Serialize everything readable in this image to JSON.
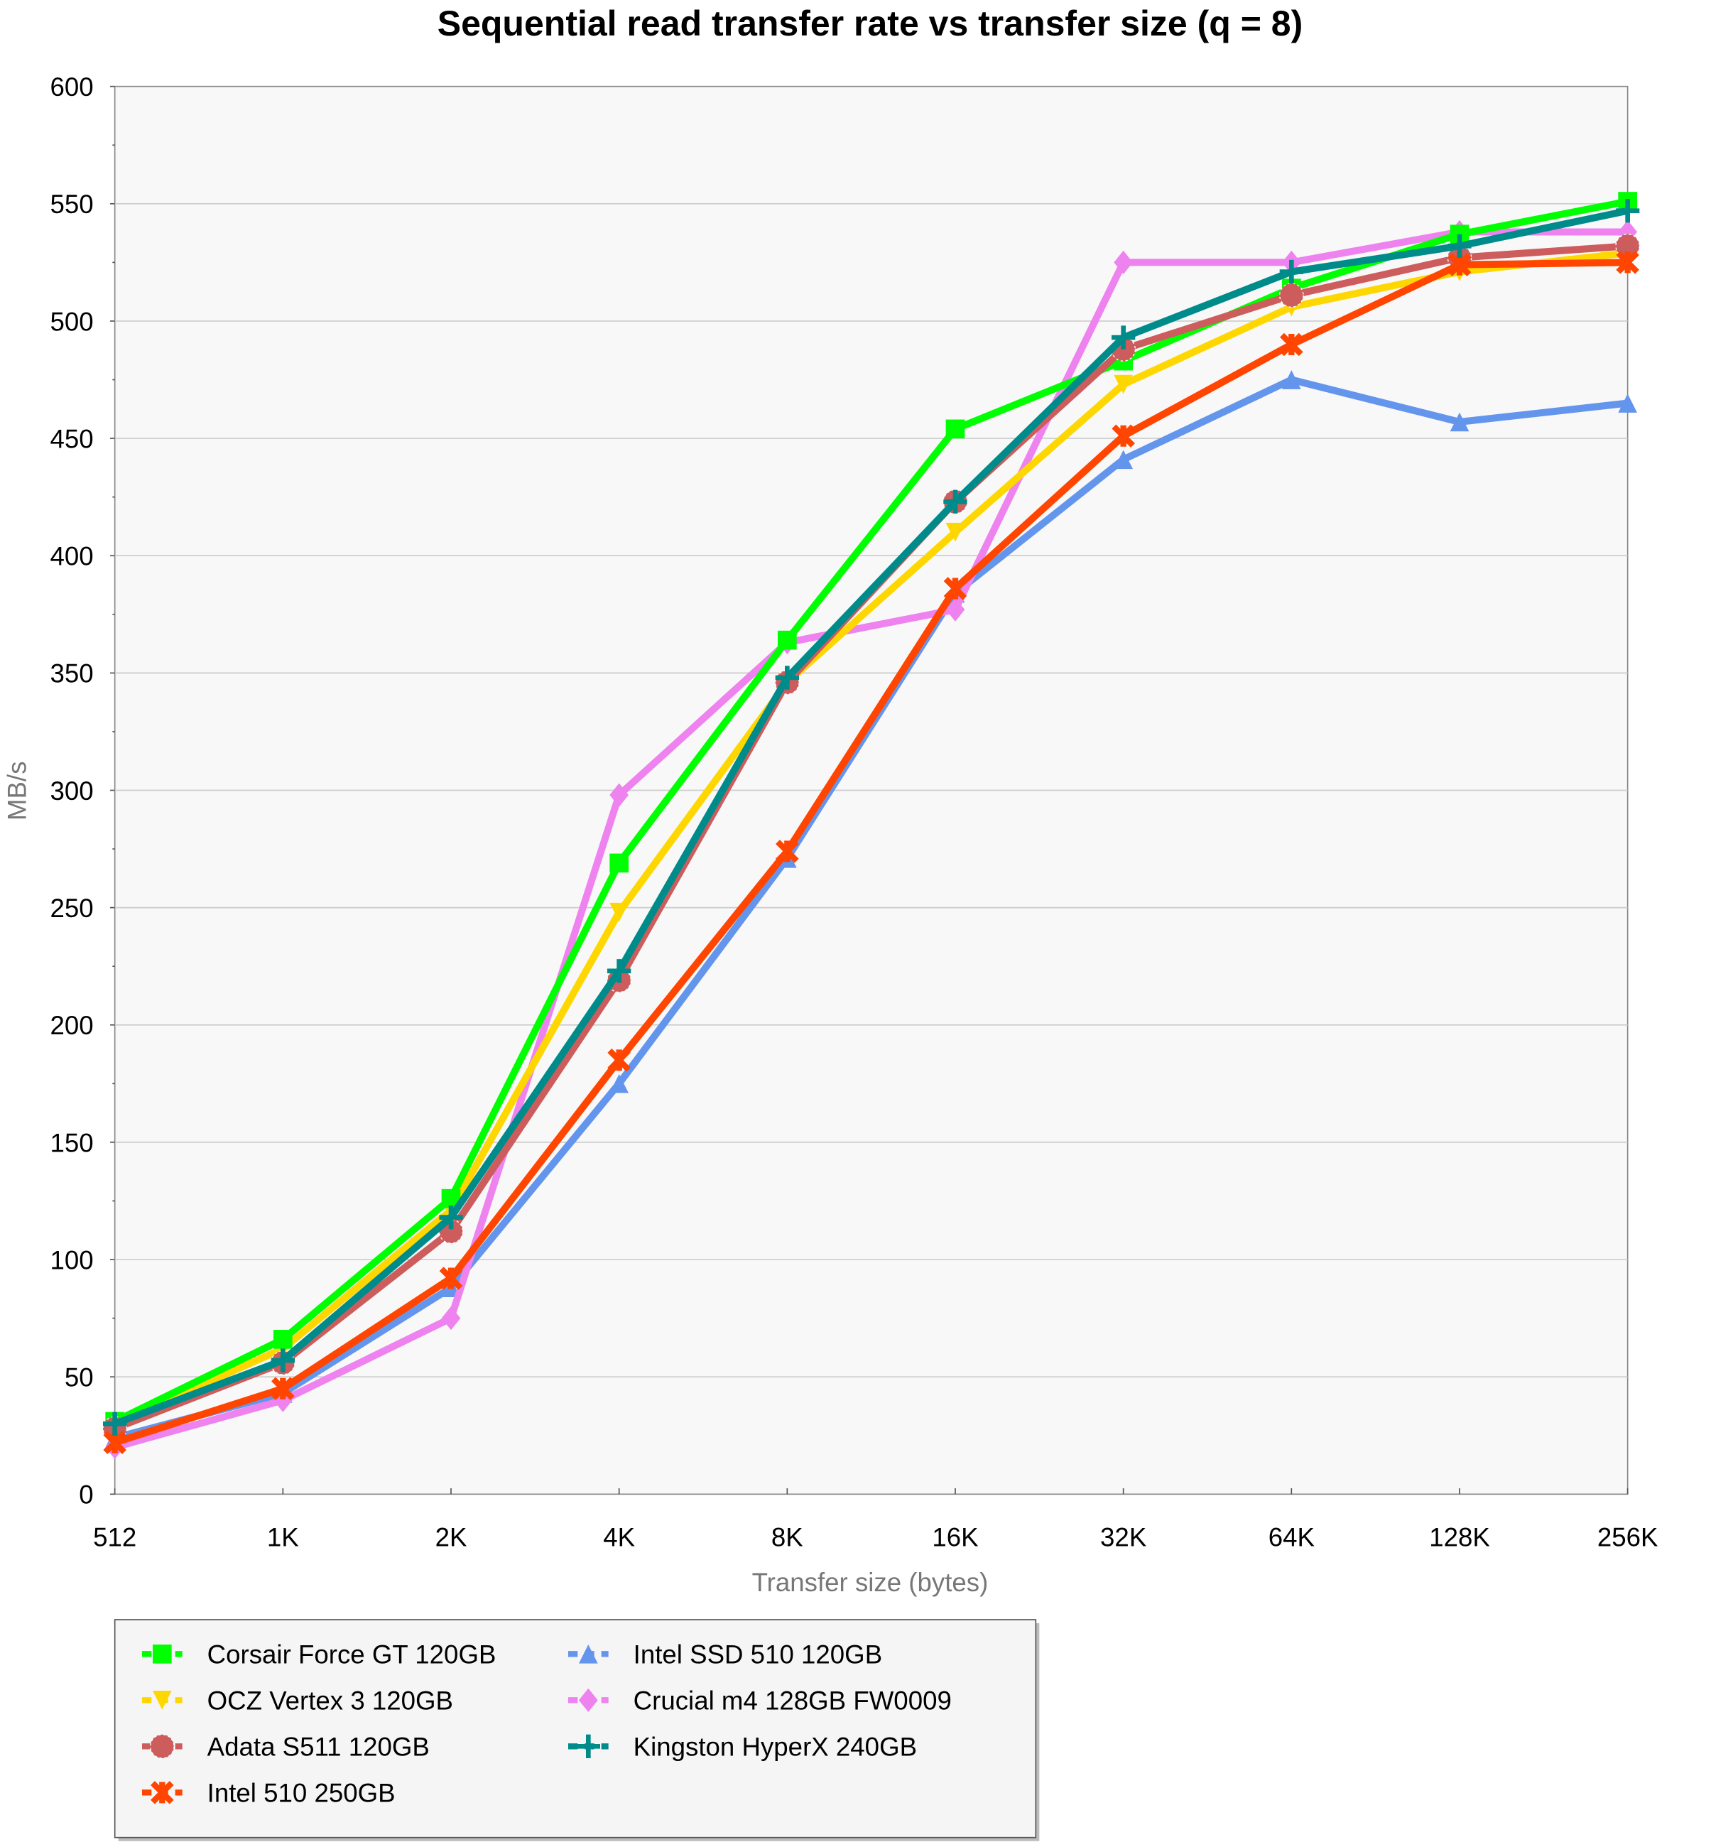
{
  "chart_data": {
    "type": "line",
    "title": "Sequential read transfer rate vs transfer size (q = 8)",
    "xlabel": "Transfer size (bytes)",
    "ylabel": "MB/s",
    "categories": [
      "512",
      "1K",
      "2K",
      "4K",
      "8K",
      "16K",
      "32K",
      "64K",
      "128K",
      "256K"
    ],
    "ylim": [
      0,
      600
    ],
    "yticks": [
      0,
      50,
      100,
      150,
      200,
      250,
      300,
      350,
      400,
      450,
      500,
      550,
      600
    ],
    "grid": true,
    "legend_position": "bottom-left",
    "series": [
      {
        "name": "Corsair Force GT 120GB",
        "color": "#00ff00",
        "marker": "square",
        "values": [
          31,
          66,
          126,
          269,
          364,
          454,
          483,
          514,
          537,
          551
        ]
      },
      {
        "name": "OCZ Vertex 3 120GB",
        "color": "#ffd700",
        "marker": "triangle-down",
        "values": [
          30,
          62,
          121,
          248,
          346,
          410,
          473,
          506,
          521,
          529
        ]
      },
      {
        "name": "Adata S511 120GB",
        "color": "#cd5c5c",
        "marker": "circle",
        "values": [
          28,
          56,
          112,
          219,
          346,
          423,
          488,
          511,
          527,
          532
        ]
      },
      {
        "name": "Intel 510 250GB",
        "color": "#ff4500",
        "marker": "x",
        "values": [
          22,
          45,
          92,
          185,
          274,
          386,
          451,
          490,
          524,
          525
        ]
      },
      {
        "name": "Intel SSD 510 120GB",
        "color": "#6495ed",
        "marker": "triangle-up",
        "values": [
          24,
          43,
          88,
          175,
          271,
          384,
          441,
          475,
          457,
          465
        ]
      },
      {
        "name": "Crucial m4 128GB FW0009",
        "color": "#ee82ee",
        "marker": "diamond",
        "values": [
          20,
          40,
          75,
          298,
          363,
          377,
          525,
          525,
          538,
          538
        ]
      },
      {
        "name": "Kingston HyperX 240GB",
        "color": "#008b8b",
        "marker": "plus",
        "values": [
          30,
          57,
          118,
          223,
          348,
          423,
          493,
          521,
          532,
          547
        ]
      }
    ]
  }
}
